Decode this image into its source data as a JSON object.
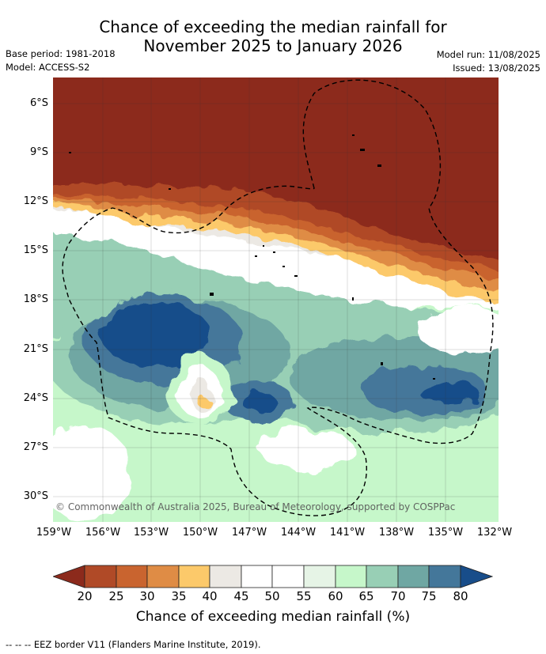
{
  "header": {
    "title_line1": "Chance of exceeding the median rainfall for",
    "title_line2": "November 2025 to January 2026",
    "base_period": "Base period: 1981-2018",
    "model": "Model: ACCESS-S2",
    "model_run": "Model run: 11/08/2025",
    "issued": "Issued: 13/08/2025"
  },
  "map": {
    "lat_labels": [
      "6°S",
      "9°S",
      "12°S",
      "15°S",
      "18°S",
      "21°S",
      "24°S",
      "27°S",
      "30°S"
    ],
    "lon_labels": [
      "159°W",
      "156°W",
      "153°W",
      "150°W",
      "147°W",
      "144°W",
      "141°W",
      "138°W",
      "135°W",
      "132°W"
    ],
    "copyright": "© Commonwealth of Australia 2025, Bureau of Meteorology, supported by COSPPac"
  },
  "legend": {
    "ticks": [
      "20",
      "25",
      "30",
      "35",
      "40",
      "45",
      "50",
      "55",
      "60",
      "65",
      "70",
      "75",
      "80"
    ],
    "title": "Chance of exceeding median rainfall (%)",
    "colors": [
      "#8c2a1c",
      "#b04a27",
      "#c9642f",
      "#df8c45",
      "#fcc96a",
      "#ece9e4",
      "#ffffff",
      "#ffffff",
      "#e6f4e6",
      "#c6f7ca",
      "#98cfb5",
      "#6fa7a3",
      "#44779a",
      "#184d8a"
    ]
  },
  "footnote": "--  --  -- EEZ border V11 (Flanders Marine Institute, 2019)."
}
